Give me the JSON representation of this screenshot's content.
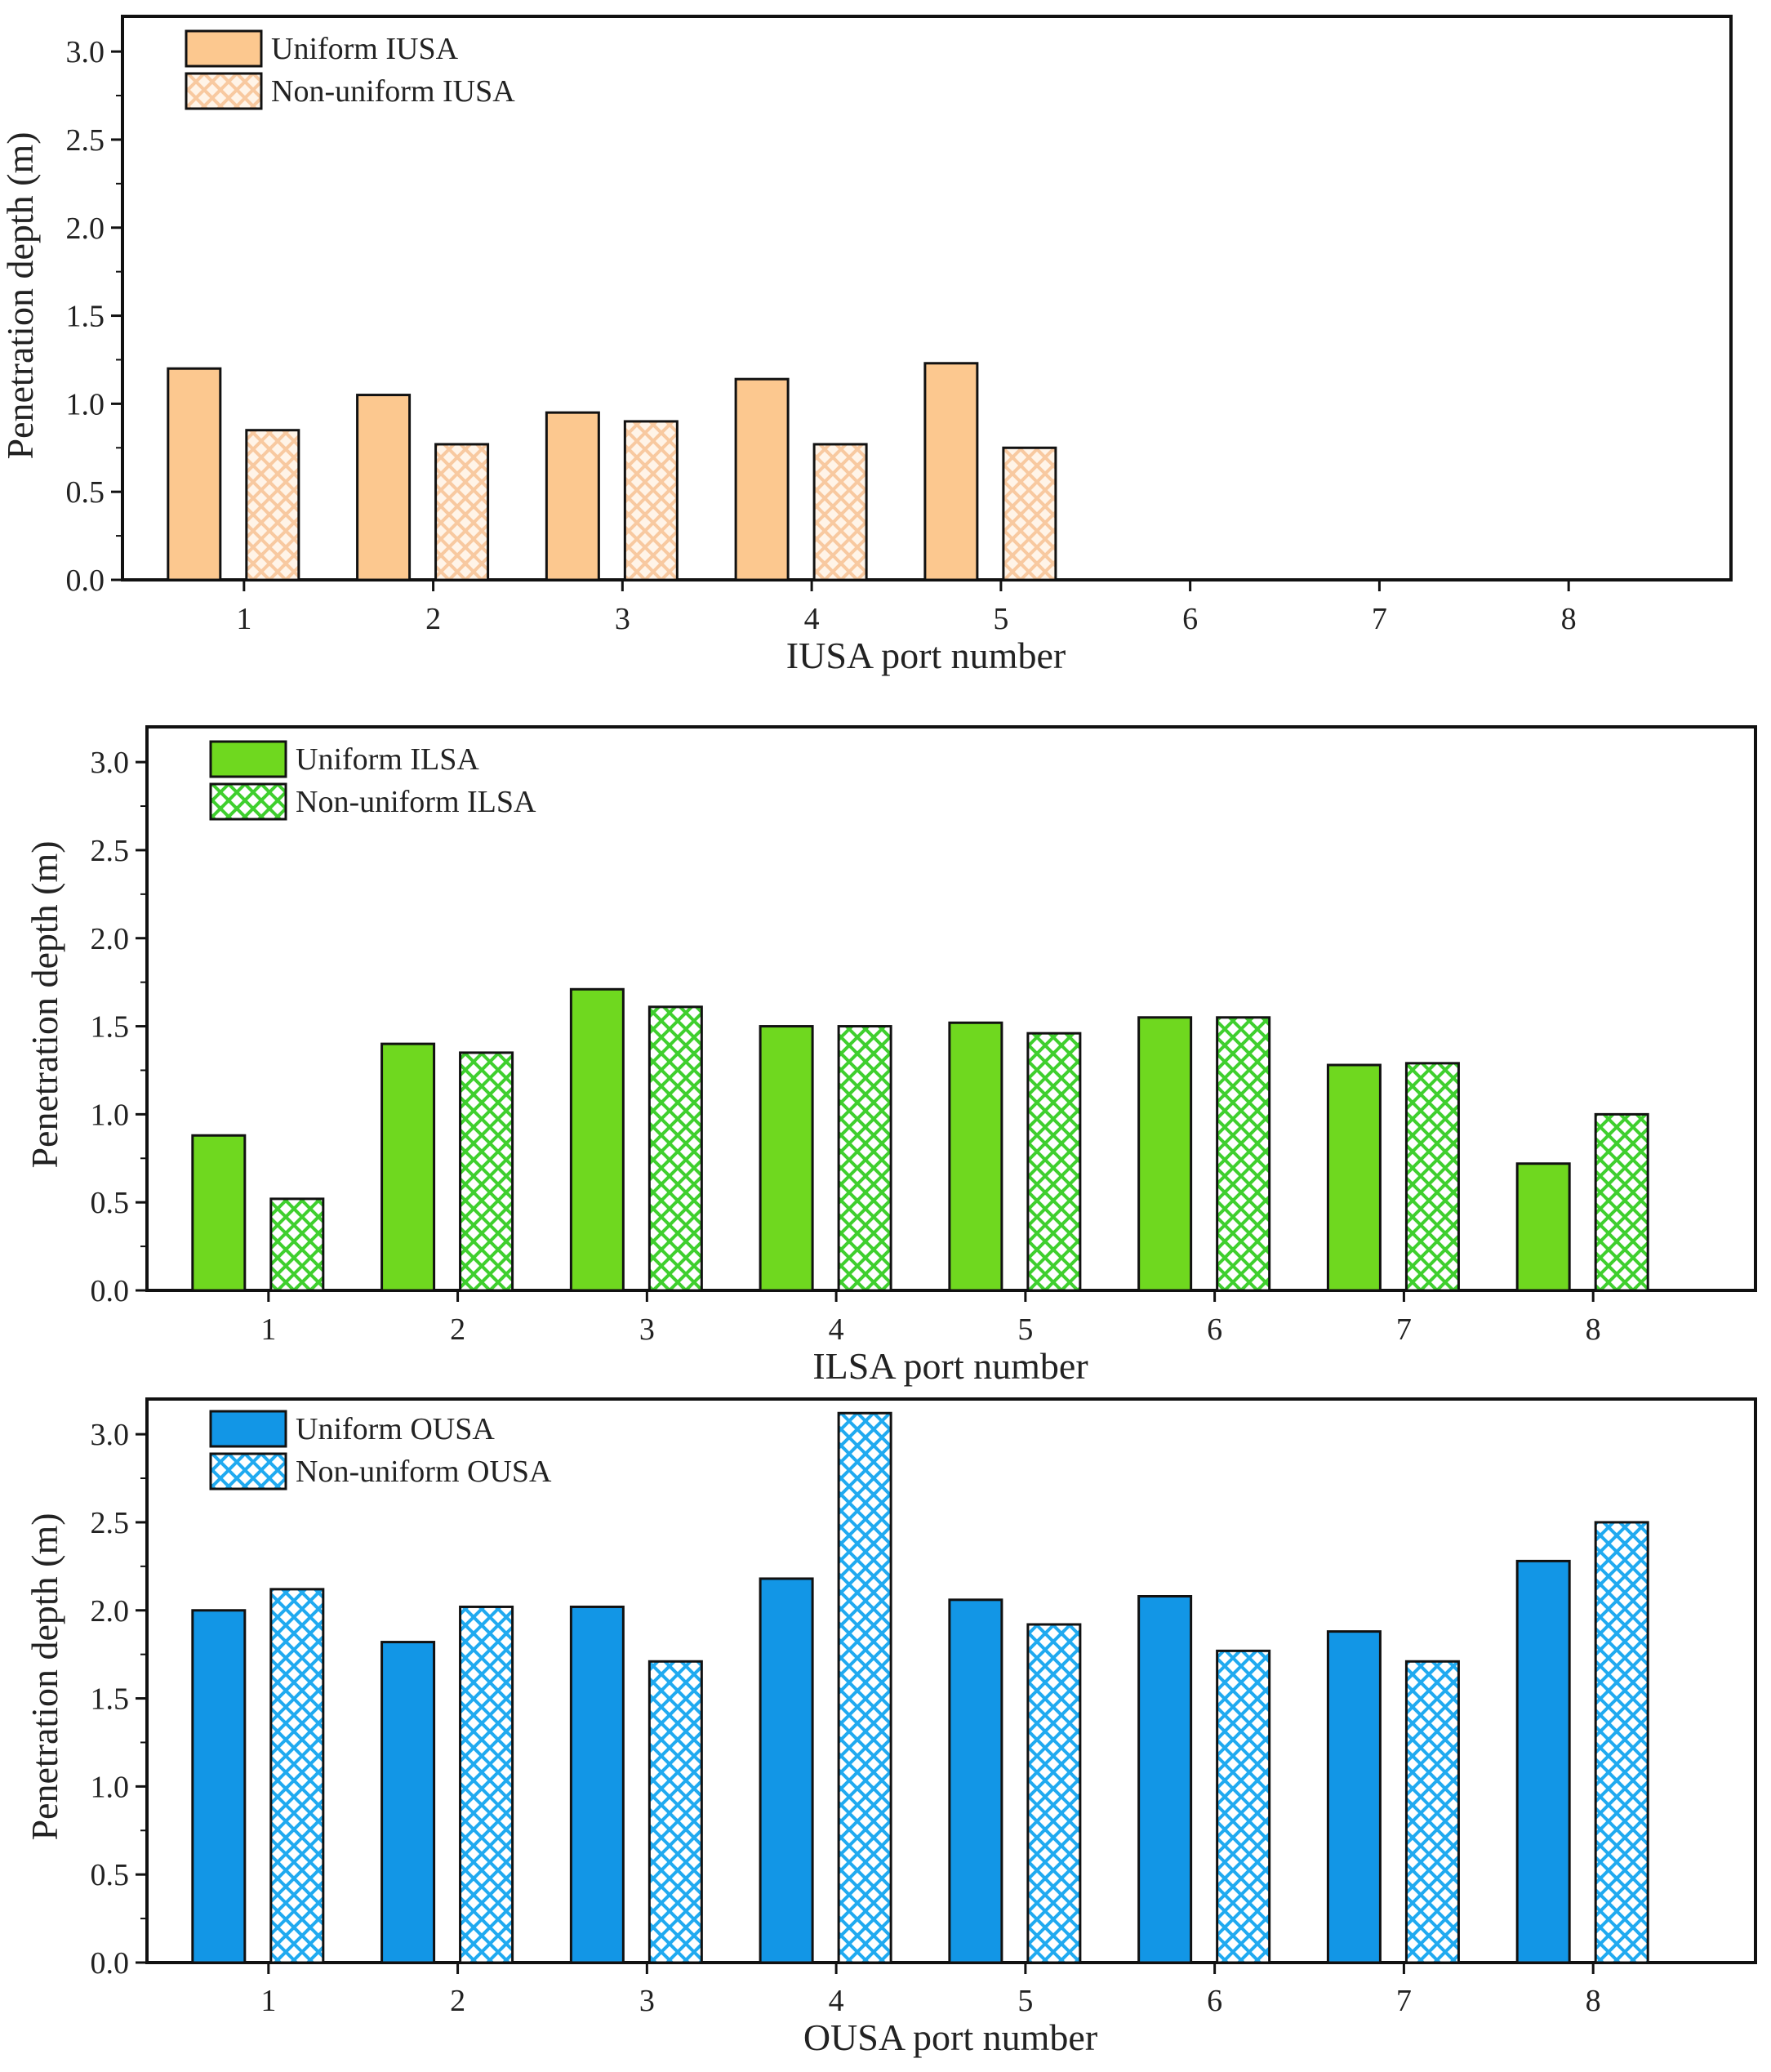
{
  "chart_data": [
    {
      "type": "bar",
      "categories": [
        "1",
        "2",
        "3",
        "4",
        "5",
        "6",
        "7",
        "8"
      ],
      "series": [
        {
          "name": "Uniform IUSA",
          "values": [
            1.2,
            1.05,
            0.95,
            1.14,
            1.23,
            null,
            null,
            null
          ]
        },
        {
          "name": "Non-uniform IUSA",
          "values": [
            0.85,
            0.77,
            0.9,
            0.77,
            0.75,
            null,
            null,
            null
          ]
        }
      ],
      "title": "",
      "xlabel": "IUSA port number",
      "ylabel": "Penetration depth (m)",
      "ylim": [
        0,
        3.2
      ],
      "yticks": [
        "0.0",
        "0.5",
        "1.0",
        "1.5",
        "2.0",
        "2.5",
        "3.0"
      ],
      "legend_position": "top-left",
      "colors": {
        "uniform": "#fcc88f",
        "pattern_bg": "#fff4e8",
        "pattern_fg": "#f8c9a0"
      }
    },
    {
      "type": "bar",
      "categories": [
        "1",
        "2",
        "3",
        "4",
        "5",
        "6",
        "7",
        "8"
      ],
      "series": [
        {
          "name": "Uniform ILSA",
          "values": [
            0.88,
            1.4,
            1.71,
            1.5,
            1.52,
            1.55,
            1.28,
            0.72
          ]
        },
        {
          "name": "Non-uniform ILSA",
          "values": [
            0.52,
            1.35,
            1.61,
            1.5,
            1.46,
            1.55,
            1.29,
            1.0
          ]
        }
      ],
      "title": "",
      "xlabel": "ILSA port number",
      "ylabel": "Penetration depth (m)",
      "ylim": [
        0,
        3.2
      ],
      "yticks": [
        "0.0",
        "0.5",
        "1.0",
        "1.5",
        "2.0",
        "2.5",
        "3.0"
      ],
      "legend_position": "top-left",
      "colors": {
        "uniform": "#6fd81f",
        "pattern_bg": "#ffffff",
        "pattern_fg": "#3fcf2e"
      }
    },
    {
      "type": "bar",
      "categories": [
        "1",
        "2",
        "3",
        "4",
        "5",
        "6",
        "7",
        "8"
      ],
      "series": [
        {
          "name": "Uniform OUSA",
          "values": [
            2.0,
            1.82,
            2.02,
            2.18,
            2.06,
            2.08,
            1.88,
            2.28
          ]
        },
        {
          "name": "Non-uniform OUSA",
          "values": [
            2.12,
            2.02,
            1.71,
            3.12,
            1.92,
            1.77,
            1.71,
            2.5
          ]
        }
      ],
      "title": "",
      "xlabel": "OUSA port number",
      "ylabel": "Penetration depth (m)",
      "ylim": [
        0,
        3.2
      ],
      "yticks": [
        "0.0",
        "0.5",
        "1.0",
        "1.5",
        "2.0",
        "2.5",
        "3.0"
      ],
      "legend_position": "top-left",
      "colors": {
        "uniform": "#1296e6",
        "pattern_bg": "#ffffff",
        "pattern_fg": "#20aaf0"
      }
    }
  ]
}
